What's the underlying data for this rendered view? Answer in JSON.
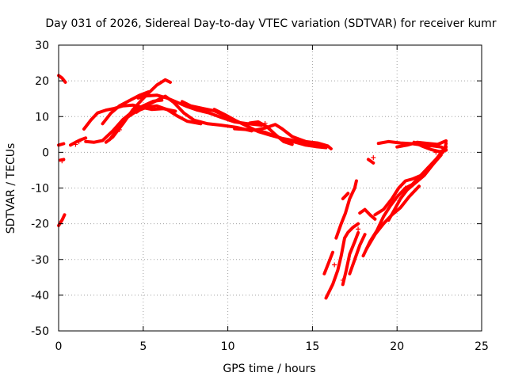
{
  "chart_data": {
    "type": "scatter",
    "title": "Day 031 of 2026, Sidereal Day-to-day VTEC variation (SDTVAR) for receiver kumr",
    "xlabel": "GPS time / hours",
    "ylabel": "SDTVAR / TECUs",
    "xlim": [
      0,
      25
    ],
    "ylim": [
      -50,
      30
    ],
    "xticks": [
      "0",
      "5",
      "10",
      "15",
      "20",
      "25"
    ],
    "yticks": [
      "30",
      "20",
      "10",
      "0",
      "-10",
      "-20",
      "-30",
      "-40",
      "-50"
    ],
    "grid": true,
    "marker": "+",
    "color": "#ff0000",
    "traces": [
      {
        "points": [
          [
            0.0,
            21.5
          ],
          [
            0.2,
            20.8
          ],
          [
            0.4,
            19.6
          ]
        ]
      },
      {
        "points": [
          [
            0.0,
            2.0
          ],
          [
            0.3,
            2.4
          ]
        ]
      },
      {
        "points": [
          [
            0.1,
            -2.2
          ],
          [
            0.3,
            -2.0
          ]
        ]
      },
      {
        "points": [
          [
            0.0,
            -20.5
          ],
          [
            0.2,
            -19.0
          ],
          [
            0.35,
            -17.5
          ]
        ]
      },
      {
        "points": [
          [
            0.7,
            2.0
          ],
          [
            1.0,
            2.8
          ],
          [
            1.3,
            3.5
          ],
          [
            1.6,
            4.0
          ]
        ]
      },
      {
        "points": [
          [
            1.5,
            6.5
          ],
          [
            1.9,
            9.0
          ],
          [
            2.3,
            11.0
          ],
          [
            2.8,
            11.8
          ],
          [
            3.3,
            12.3
          ],
          [
            3.8,
            13.0
          ],
          [
            4.4,
            13.2
          ],
          [
            5.0,
            12.5
          ],
          [
            5.5,
            12.0
          ],
          [
            6.2,
            12.2
          ],
          [
            6.9,
            11.5
          ]
        ]
      },
      {
        "points": [
          [
            1.6,
            3.0
          ],
          [
            2.1,
            2.8
          ],
          [
            2.6,
            3.3
          ],
          [
            3.2,
            6.0
          ],
          [
            3.8,
            9.2
          ],
          [
            4.4,
            11.5
          ],
          [
            5.0,
            13.0
          ],
          [
            5.6,
            14.3
          ],
          [
            6.1,
            14.6
          ]
        ]
      },
      {
        "points": [
          [
            2.8,
            2.8
          ],
          [
            3.2,
            4.3
          ],
          [
            3.8,
            8.0
          ],
          [
            4.4,
            12.0
          ],
          [
            4.9,
            14.6
          ],
          [
            5.3,
            16.5
          ],
          [
            5.8,
            18.8
          ],
          [
            6.3,
            20.3
          ],
          [
            6.6,
            19.6
          ]
        ]
      },
      {
        "points": [
          [
            2.6,
            8.0
          ],
          [
            3.1,
            11.0
          ],
          [
            3.6,
            13.0
          ],
          [
            4.2,
            14.5
          ],
          [
            4.8,
            16.0
          ],
          [
            5.3,
            16.9
          ]
        ]
      },
      {
        "points": [
          [
            3.0,
            3.5
          ],
          [
            3.5,
            6.5
          ],
          [
            4.0,
            9.6
          ],
          [
            4.6,
            11.5
          ],
          [
            5.2,
            12.6
          ],
          [
            5.8,
            13.0
          ],
          [
            6.4,
            12.0
          ],
          [
            7.0,
            10.2
          ],
          [
            7.6,
            8.7
          ],
          [
            8.4,
            8.0
          ]
        ]
      },
      {
        "points": [
          [
            4.6,
            11.2
          ],
          [
            5.1,
            12.9
          ],
          [
            5.8,
            14.5
          ],
          [
            6.3,
            15.7
          ],
          [
            6.8,
            14.0
          ],
          [
            7.4,
            11.0
          ],
          [
            8.0,
            9.0
          ],
          [
            8.8,
            8.0
          ],
          [
            9.6,
            7.6
          ],
          [
            10.5,
            7.0
          ],
          [
            11.4,
            6.0
          ]
        ]
      },
      {
        "points": [
          [
            4.7,
            15.2
          ],
          [
            5.2,
            15.8
          ],
          [
            5.8,
            16.0
          ],
          [
            6.4,
            15.2
          ],
          [
            7.0,
            14.0
          ],
          [
            7.6,
            12.8
          ],
          [
            8.2,
            11.8
          ],
          [
            8.9,
            11.0
          ],
          [
            9.6,
            9.8
          ],
          [
            10.4,
            8.5
          ],
          [
            11.2,
            8.0
          ],
          [
            12.0,
            7.6
          ]
        ]
      },
      {
        "points": [
          [
            7.3,
            14.2
          ],
          [
            7.8,
            13.0
          ],
          [
            8.5,
            12.3
          ],
          [
            9.2,
            11.6
          ],
          [
            9.8,
            10.3
          ],
          [
            10.2,
            9.0
          ]
        ]
      },
      {
        "points": [
          [
            9.2,
            12.0
          ],
          [
            9.8,
            10.6
          ],
          [
            10.5,
            8.8
          ],
          [
            11.2,
            7.2
          ],
          [
            11.8,
            5.8
          ],
          [
            12.5,
            4.8
          ],
          [
            13.2,
            3.9
          ],
          [
            14.0,
            3.2
          ],
          [
            14.8,
            2.7
          ],
          [
            15.5,
            1.8
          ]
        ]
      },
      {
        "points": [
          [
            10.4,
            6.6
          ],
          [
            11.0,
            6.4
          ],
          [
            11.6,
            6.2
          ],
          [
            12.2,
            5.6
          ],
          [
            12.8,
            4.5
          ],
          [
            13.4,
            3.6
          ],
          [
            14.0,
            2.8
          ],
          [
            14.6,
            2.0
          ],
          [
            15.2,
            1.6
          ],
          [
            15.8,
            1.3
          ]
        ]
      },
      {
        "points": [
          [
            11.3,
            8.2
          ],
          [
            11.8,
            8.5
          ],
          [
            12.3,
            7.2
          ],
          [
            12.8,
            5.0
          ],
          [
            13.3,
            3.0
          ],
          [
            13.8,
            2.2
          ]
        ]
      },
      {
        "points": [
          [
            11.6,
            6.2
          ],
          [
            12.2,
            6.8
          ],
          [
            12.8,
            7.8
          ],
          [
            13.2,
            6.6
          ],
          [
            13.8,
            4.4
          ],
          [
            14.6,
            3.0
          ],
          [
            15.3,
            2.6
          ],
          [
            15.9,
            1.8
          ],
          [
            16.1,
            1.0
          ]
        ]
      },
      {
        "points": [
          [
            15.7,
            -34.0
          ],
          [
            15.95,
            -31.0
          ],
          [
            16.2,
            -28.0
          ]
        ]
      },
      {
        "points": [
          [
            15.8,
            -40.8
          ],
          [
            16.2,
            -37.0
          ],
          [
            16.5,
            -33.0
          ],
          [
            16.7,
            -29.0
          ],
          [
            16.9,
            -24.0
          ],
          [
            17.1,
            -22.4
          ],
          [
            17.4,
            -21.0
          ],
          [
            17.7,
            -20.0
          ]
        ]
      },
      {
        "points": [
          [
            16.4,
            -24.0
          ],
          [
            16.7,
            -20.0
          ],
          [
            16.95,
            -17.0
          ],
          [
            17.2,
            -13.0
          ],
          [
            17.5,
            -10.0
          ],
          [
            17.6,
            -8.0
          ]
        ]
      },
      {
        "points": [
          [
            16.8,
            -13.0
          ],
          [
            17.1,
            -11.5
          ]
        ]
      },
      {
        "points": [
          [
            16.8,
            -37.0
          ],
          [
            17.0,
            -33.0
          ],
          [
            17.2,
            -28.5
          ],
          [
            17.5,
            -25.0
          ],
          [
            17.7,
            -22.5
          ]
        ]
      },
      {
        "points": [
          [
            17.2,
            -34.0
          ],
          [
            17.5,
            -30.0
          ],
          [
            17.8,
            -26.0
          ],
          [
            18.1,
            -23.0
          ]
        ]
      },
      {
        "points": [
          [
            17.8,
            -17.0
          ],
          [
            18.1,
            -16.0
          ],
          [
            18.4,
            -17.5
          ],
          [
            18.7,
            -18.7
          ]
        ]
      },
      {
        "points": [
          [
            18.3,
            -2.0
          ],
          [
            18.6,
            -3.0
          ]
        ]
      },
      {
        "points": [
          [
            18.9,
            2.5
          ],
          [
            19.5,
            3.0
          ],
          [
            20.2,
            2.6
          ],
          [
            20.9,
            2.4
          ],
          [
            21.5,
            2.0
          ],
          [
            22.1,
            1.8
          ],
          [
            22.6,
            1.5
          ],
          [
            22.9,
            0.8
          ]
        ]
      },
      {
        "points": [
          [
            18.7,
            -17.5
          ],
          [
            19.2,
            -16.0
          ],
          [
            19.7,
            -13.0
          ],
          [
            20.1,
            -10.0
          ],
          [
            20.5,
            -8.0
          ],
          [
            20.9,
            -7.5
          ],
          [
            21.4,
            -6.5
          ],
          [
            21.9,
            -4.0
          ],
          [
            22.4,
            -1.5
          ],
          [
            22.8,
            0.5
          ],
          [
            22.9,
            2.5
          ]
        ]
      },
      {
        "points": [
          [
            18.0,
            -29.0
          ],
          [
            18.4,
            -25.0
          ],
          [
            18.8,
            -22.0
          ],
          [
            19.2,
            -18.0
          ],
          [
            19.6,
            -15.0
          ],
          [
            20.0,
            -12.5
          ],
          [
            20.5,
            -10.0
          ],
          [
            20.9,
            -9.0
          ],
          [
            21.3,
            -7.0
          ],
          [
            21.8,
            -4.5
          ],
          [
            22.3,
            -2.0
          ],
          [
            22.7,
            0.5
          ],
          [
            22.9,
            1.5
          ]
        ]
      },
      {
        "points": [
          [
            18.2,
            -27.0
          ],
          [
            18.7,
            -23.0
          ],
          [
            19.2,
            -20.0
          ],
          [
            19.7,
            -17.5
          ],
          [
            20.2,
            -15.5
          ],
          [
            20.7,
            -12.5
          ],
          [
            21.1,
            -10.5
          ],
          [
            21.3,
            -9.5
          ]
        ]
      },
      {
        "points": [
          [
            19.5,
            -19.0
          ],
          [
            19.8,
            -16.5
          ],
          [
            20.2,
            -13.0
          ],
          [
            20.6,
            -10.5
          ],
          [
            21.1,
            -8.5
          ],
          [
            21.6,
            -6.5
          ],
          [
            22.1,
            -3.5
          ],
          [
            22.6,
            -0.8
          ]
        ]
      },
      {
        "points": [
          [
            20.0,
            1.5
          ],
          [
            20.6,
            2.0
          ],
          [
            21.2,
            2.8
          ],
          [
            21.8,
            2.5
          ],
          [
            22.4,
            2.2
          ],
          [
            22.9,
            3.2
          ]
        ]
      },
      {
        "points": [
          [
            21.0,
            2.8
          ],
          [
            21.5,
            1.7
          ],
          [
            22.0,
            0.8
          ],
          [
            22.5,
            0.2
          ],
          [
            22.9,
            0.6
          ]
        ]
      }
    ],
    "points": [
      [
        1.0,
        2.2
      ],
      [
        1.2,
        3.0
      ],
      [
        3.6,
        6.3
      ],
      [
        4.3,
        11.0
      ],
      [
        12.2,
        8.1
      ],
      [
        16.8,
        -35.8
      ],
      [
        16.3,
        -31.5
      ],
      [
        17.7,
        -21.5
      ],
      [
        18.6,
        -1.5
      ],
      [
        20.5,
        -10.0
      ],
      [
        0.2,
        -2.4
      ],
      [
        22.3,
        0.0
      ]
    ]
  }
}
